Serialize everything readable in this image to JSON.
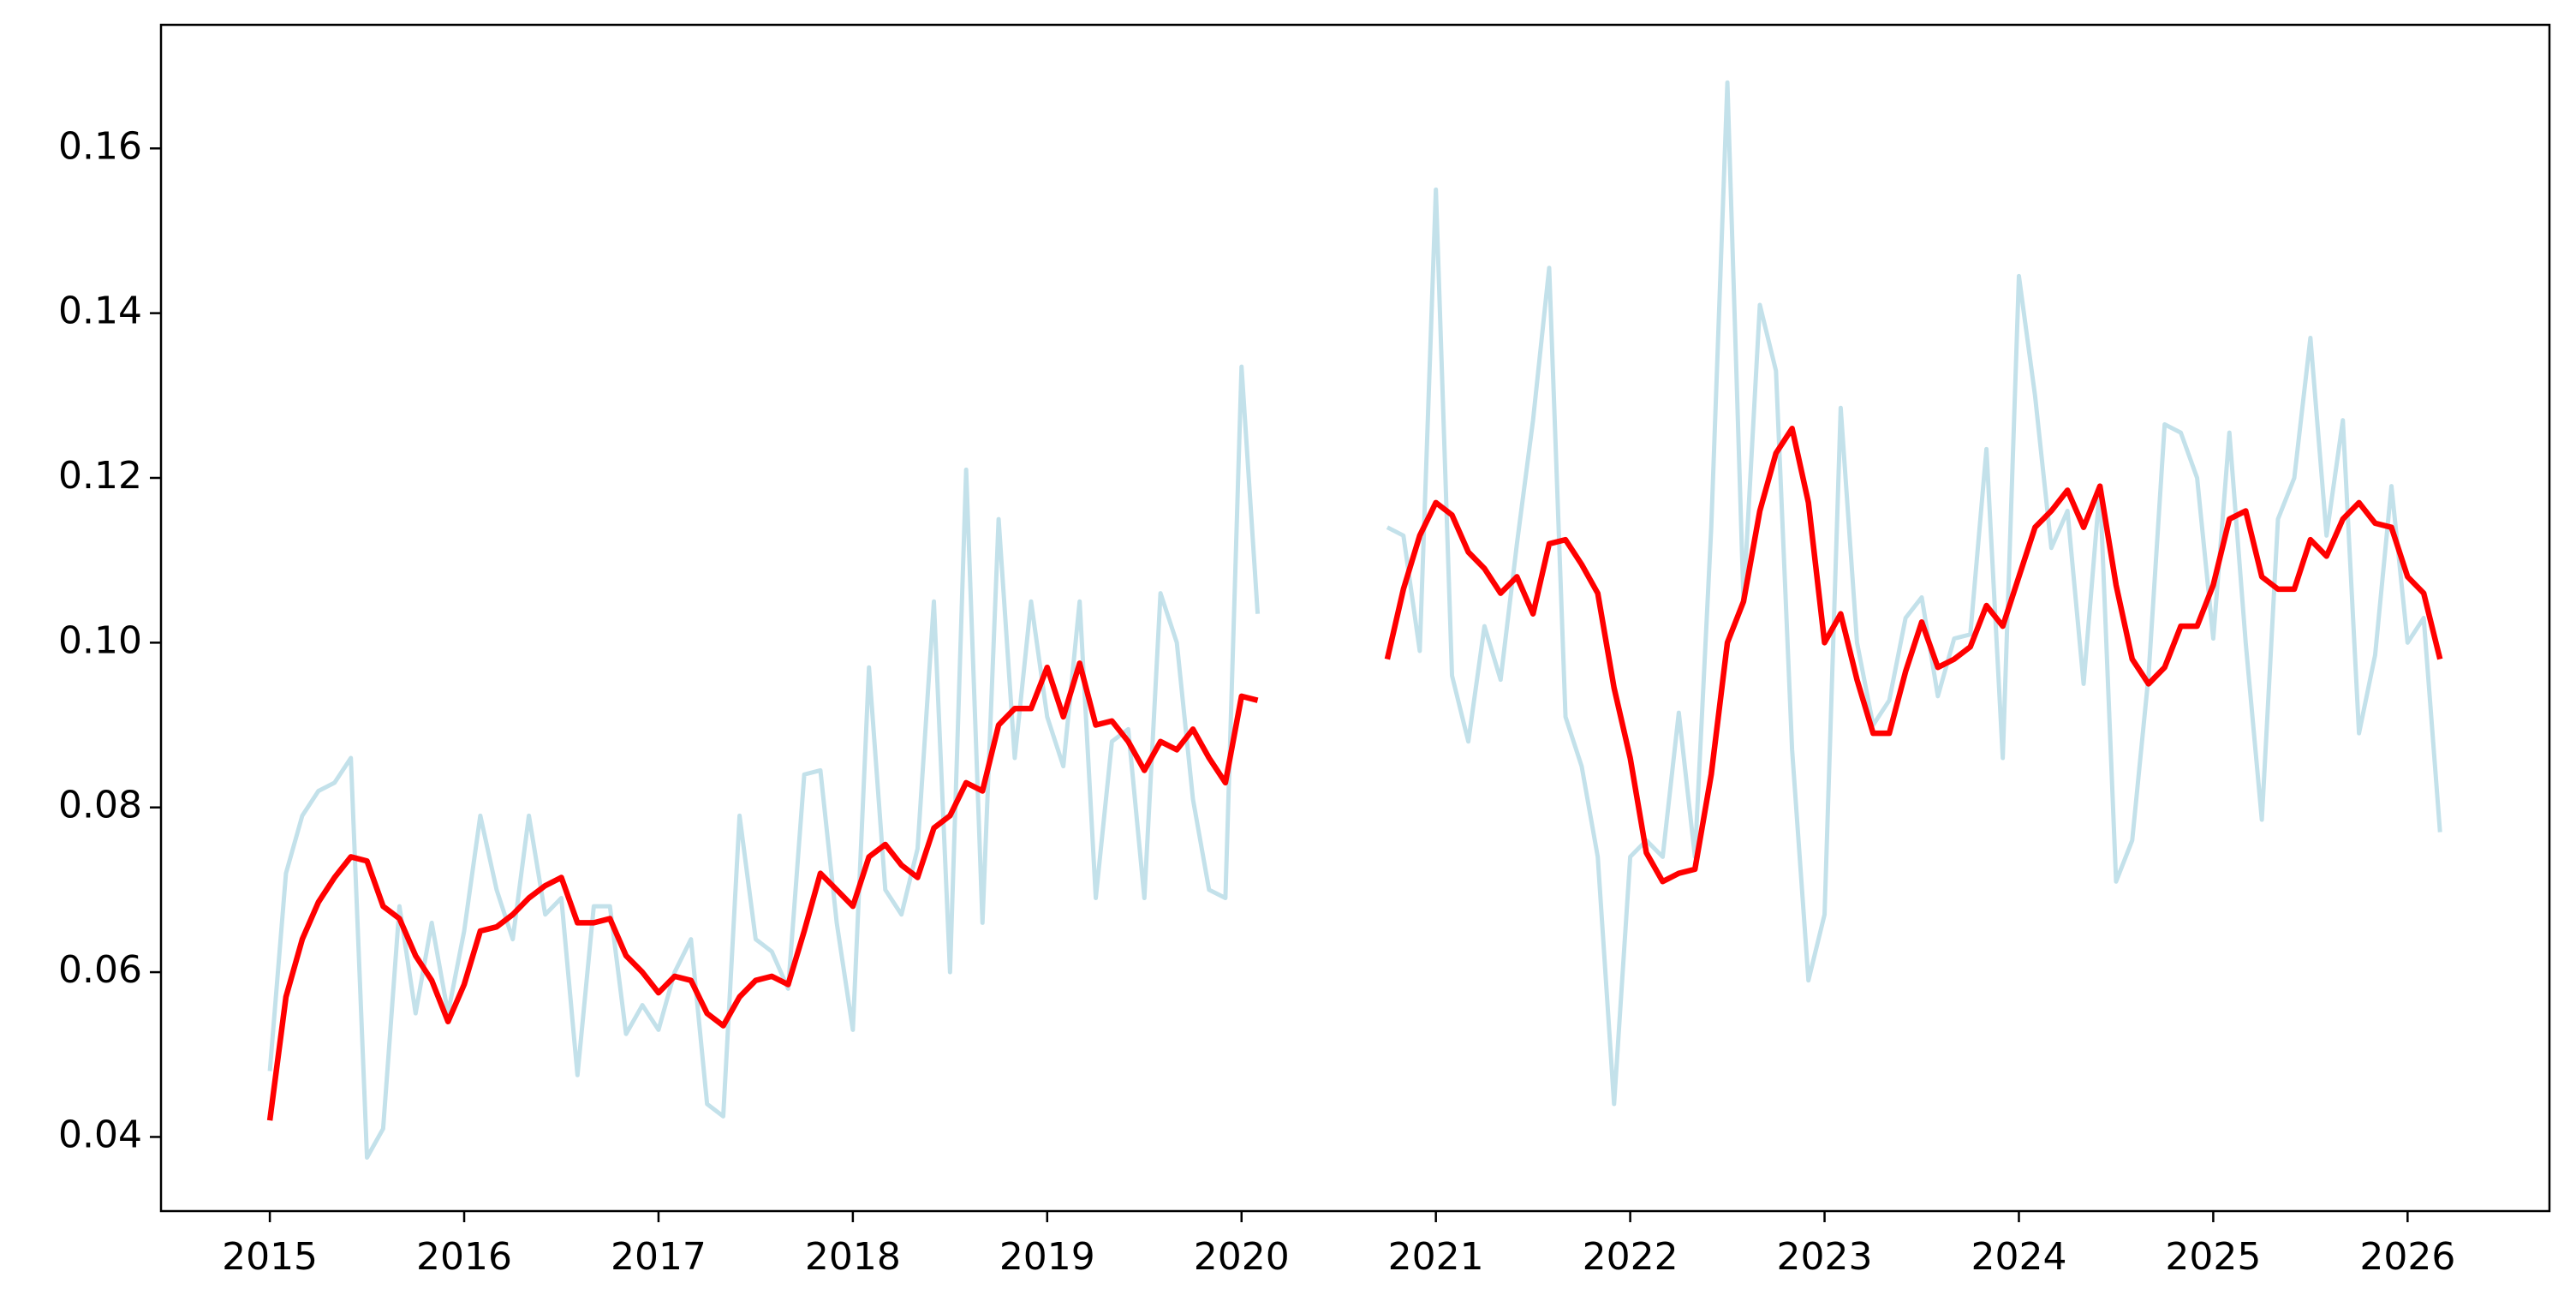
{
  "chart_data": {
    "type": "line",
    "x": [
      2015,
      2015.083,
      2015.167,
      2015.25,
      2015.333,
      2015.417,
      2015.5,
      2015.583,
      2015.667,
      2015.75,
      2015.833,
      2015.917,
      2016,
      2016.083,
      2016.167,
      2016.25,
      2016.333,
      2016.417,
      2016.5,
      2016.583,
      2016.667,
      2016.75,
      2016.833,
      2016.917,
      2017,
      2017.083,
      2017.167,
      2017.25,
      2017.333,
      2017.417,
      2017.5,
      2017.583,
      2017.667,
      2017.75,
      2017.833,
      2017.917,
      2018,
      2018.083,
      2018.167,
      2018.25,
      2018.333,
      2018.417,
      2018.5,
      2018.583,
      2018.667,
      2018.75,
      2018.833,
      2018.917,
      2019,
      2019.083,
      2019.167,
      2019.25,
      2019.333,
      2019.417,
      2019.5,
      2019.583,
      2019.667,
      2019.75,
      2019.833,
      2019.917,
      2020,
      2020.083,
      2020.167,
      2020.25,
      2020.333,
      2020.417,
      2020.5,
      2020.583,
      2020.667,
      2020.75,
      2020.833,
      2020.917,
      2021,
      2021.083,
      2021.167,
      2021.25,
      2021.333,
      2021.417,
      2021.5,
      2021.583,
      2021.667,
      2021.75,
      2021.833,
      2021.917,
      2022,
      2022.083,
      2022.167,
      2022.25,
      2022.333,
      2022.417,
      2022.5,
      2022.583,
      2022.667,
      2022.75,
      2022.833,
      2022.917,
      2023,
      2023.083,
      2023.167,
      2023.25,
      2023.333,
      2023.417,
      2023.5,
      2023.583,
      2023.667,
      2023.75,
      2023.833,
      2023.917,
      2024,
      2024.083,
      2024.167,
      2024.25,
      2024.333,
      2024.417,
      2024.5,
      2024.583,
      2024.667,
      2024.75,
      2024.833,
      2024.917,
      2025,
      2025.083,
      2025.167,
      2025.25,
      2025.333,
      2025.417,
      2025.5,
      2025.583,
      2025.667,
      2025.75,
      2025.833,
      2025.917,
      2026,
      2026.083,
      2026.167
    ],
    "series": [
      {
        "color": "#c3e1ea",
        "values": [
          0.048,
          0.072,
          0.079,
          0.082,
          0.083,
          0.086,
          0.0375,
          0.041,
          0.068,
          0.055,
          0.066,
          0.055,
          0.065,
          0.079,
          0.07,
          0.064,
          0.079,
          0.067,
          0.069,
          0.0475,
          0.068,
          0.068,
          0.0525,
          0.056,
          0.053,
          0.06,
          0.064,
          0.044,
          0.0425,
          0.079,
          0.064,
          0.0625,
          0.058,
          0.084,
          0.0845,
          0.066,
          0.053,
          0.097,
          0.07,
          0.067,
          0.075,
          0.105,
          0.06,
          0.121,
          0.066,
          0.115,
          0.086,
          0.105,
          0.091,
          0.085,
          0.105,
          0.069,
          0.088,
          0.0895,
          0.069,
          0.106,
          0.1,
          0.081,
          0.07,
          0.069,
          0.1335,
          0.1035,
          null,
          null,
          null,
          null,
          null,
          null,
          null,
          0.114,
          0.113,
          0.099,
          0.155,
          0.096,
          0.088,
          0.102,
          0.0955,
          0.112,
          0.127,
          0.1455,
          0.091,
          0.085,
          0.074,
          0.044,
          0.074,
          0.076,
          0.074,
          0.0915,
          0.074,
          0.114,
          0.168,
          0.105,
          0.141,
          0.133,
          0.087,
          0.059,
          0.067,
          0.1285,
          0.1,
          0.09,
          0.093,
          0.103,
          0.1055,
          0.0935,
          0.1005,
          0.101,
          0.1235,
          0.086,
          0.1445,
          0.13,
          0.1115,
          0.116,
          0.095,
          0.119,
          0.071,
          0.076,
          0.096,
          0.1265,
          0.1255,
          0.12,
          0.1005,
          0.1255,
          0.1,
          0.0785,
          0.115,
          0.12,
          0.137,
          0.113,
          0.127,
          0.089,
          0.0985,
          0.119,
          0.1,
          0.103,
          0.077
        ]
      },
      {
        "color": "#ff0000",
        "values": [
          0.042,
          0.057,
          0.064,
          0.0685,
          0.0715,
          0.074,
          0.0735,
          0.068,
          0.0665,
          0.062,
          0.059,
          0.054,
          0.0585,
          0.065,
          0.0655,
          0.067,
          0.069,
          0.0705,
          0.0715,
          0.066,
          0.066,
          0.0665,
          0.062,
          0.06,
          0.0575,
          0.0595,
          0.059,
          0.055,
          0.0535,
          0.057,
          0.059,
          0.0595,
          0.0585,
          0.065,
          0.072,
          0.07,
          0.068,
          0.074,
          0.0755,
          0.073,
          0.0715,
          0.0775,
          0.079,
          0.083,
          0.082,
          0.09,
          0.092,
          0.092,
          0.097,
          0.091,
          0.0975,
          0.09,
          0.0905,
          0.088,
          0.0845,
          0.088,
          0.087,
          0.0895,
          0.086,
          0.083,
          0.0935,
          0.093,
          null,
          null,
          null,
          null,
          null,
          null,
          null,
          0.098,
          0.1065,
          0.113,
          0.117,
          0.1155,
          0.111,
          0.109,
          0.106,
          0.108,
          0.1035,
          0.112,
          0.1125,
          0.1095,
          0.106,
          0.0945,
          0.086,
          0.0745,
          0.071,
          0.072,
          0.0725,
          0.084,
          0.1,
          0.105,
          0.116,
          0.123,
          0.126,
          0.117,
          0.1,
          0.1035,
          0.0955,
          0.089,
          0.089,
          0.0965,
          0.1025,
          0.097,
          0.098,
          0.0995,
          0.1045,
          0.102,
          0.108,
          0.114,
          0.116,
          0.1185,
          0.114,
          0.119,
          0.107,
          0.098,
          0.095,
          0.097,
          0.102,
          0.102,
          0.107,
          0.115,
          0.116,
          0.108,
          0.1065,
          0.1065,
          0.1125,
          0.1105,
          0.115,
          0.117,
          0.1145,
          0.114,
          0.108,
          0.106,
          0.098
        ]
      }
    ],
    "xlim": [
      2014.44,
      2026.73
    ],
    "ylim": [
      0.031,
      0.175
    ],
    "xticks": [
      2015,
      2016,
      2017,
      2018,
      2019,
      2020,
      2021,
      2022,
      2023,
      2024,
      2025,
      2026
    ],
    "yticks": [
      0.04,
      0.06,
      0.08,
      {
        "value": 0.1,
        "label": "0.10"
      },
      0.12,
      0.14,
      0.16
    ],
    "grid": false
  }
}
